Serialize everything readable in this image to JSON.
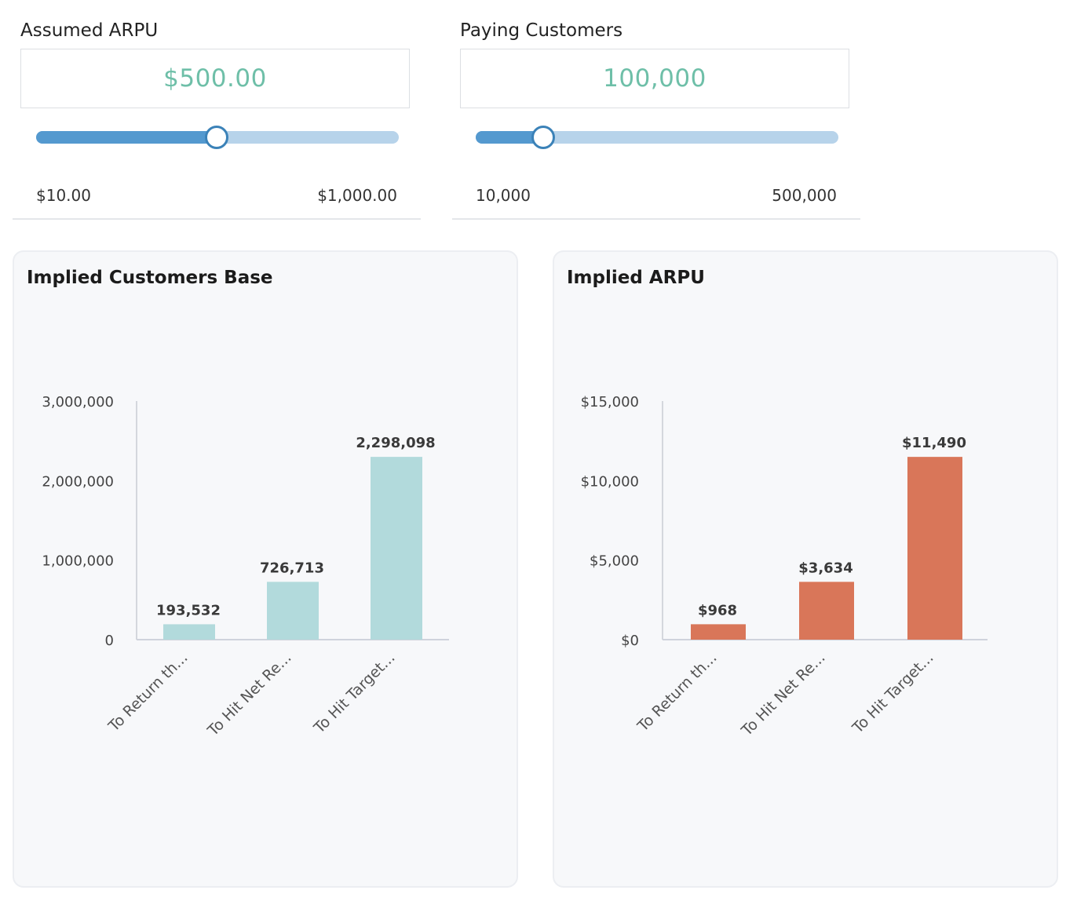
{
  "controls": {
    "arpu": {
      "label": "Assumed ARPU",
      "value": "$500.00",
      "fraction": 0.495,
      "min_label": "$10.00",
      "max_label": "$1,000.00"
    },
    "customers": {
      "label": "Paying Customers",
      "value": "100,000",
      "fraction": 0.184,
      "min_label": "10,000",
      "max_label": "500,000"
    }
  },
  "colors": {
    "value_text": "#6ebfa8",
    "slider_fill": "#5499cf",
    "slider_track": "#b7d3ea",
    "customers_bar": "#b2dadc",
    "arpu_bar": "#d97659"
  },
  "chart_data": [
    {
      "type": "bar",
      "title": "Implied Customers Base",
      "categories": [
        "To Return th...",
        "To Hit Net Re...",
        "To Hit Target..."
      ],
      "values": [
        193532,
        726713,
        2298098
      ],
      "data_labels": [
        "193,532",
        "726,713",
        "2,298,098"
      ],
      "ylim": [
        0,
        3000000
      ],
      "yticks": [
        0,
        1000000,
        2000000,
        3000000
      ],
      "ytick_labels": [
        "0",
        "1,000,000",
        "2,000,000",
        "3,000,000"
      ],
      "xlabel": "",
      "ylabel": "",
      "legend": false,
      "grid": false,
      "color": "#b2dadc"
    },
    {
      "type": "bar",
      "title": "Implied ARPU",
      "categories": [
        "To Return th...",
        "To Hit Net Re...",
        "To Hit Target..."
      ],
      "values": [
        968,
        3634,
        11490
      ],
      "data_labels": [
        "$968",
        "$3,634",
        "$11,490"
      ],
      "ylim": [
        0,
        15000
      ],
      "yticks": [
        0,
        5000,
        10000,
        15000
      ],
      "ytick_labels": [
        "$0",
        "$5,000",
        "$10,000",
        "$15,000"
      ],
      "xlabel": "",
      "ylabel": "",
      "legend": false,
      "grid": false,
      "color": "#d97659"
    }
  ]
}
